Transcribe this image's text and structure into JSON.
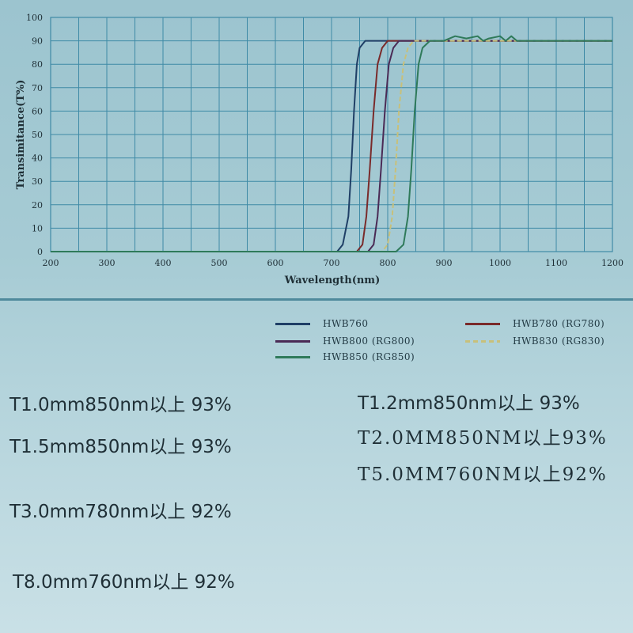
{
  "chart_data": {
    "type": "line",
    "xlabel": "Wavelength(nm)",
    "ylabel": "Transimitance(T%)",
    "xlim": [
      200,
      1200
    ],
    "ylim": [
      0,
      100
    ],
    "x_ticks": [
      200,
      300,
      400,
      500,
      600,
      700,
      800,
      900,
      1000,
      1100,
      1200
    ],
    "y_ticks": [
      0,
      10,
      20,
      30,
      40,
      50,
      60,
      70,
      80,
      90,
      100
    ],
    "grid": true,
    "series": [
      {
        "name": "HWB760",
        "color": "#1f3f66",
        "style": "solid",
        "x": [
          200,
          710,
          720,
          730,
          735,
          740,
          745,
          750,
          760,
          780,
          1200
        ],
        "y": [
          0,
          0,
          3,
          15,
          35,
          60,
          80,
          87,
          90,
          90,
          90
        ]
      },
      {
        "name": "HWB780 (RG780)",
        "color": "#7a2a2a",
        "style": "solid",
        "x": [
          200,
          745,
          755,
          762,
          768,
          775,
          782,
          790,
          800,
          820,
          1200
        ],
        "y": [
          0,
          0,
          3,
          15,
          35,
          60,
          80,
          87,
          90,
          90,
          90
        ]
      },
      {
        "name": "HWB800 (RG800)",
        "color": "#4a2a55",
        "style": "solid",
        "x": [
          200,
          765,
          775,
          782,
          788,
          795,
          802,
          810,
          820,
          840,
          1200
        ],
        "y": [
          0,
          0,
          3,
          15,
          35,
          60,
          80,
          87,
          90,
          90,
          90
        ]
      },
      {
        "name": "HWB830 (RG830)",
        "color": "#c8c07a",
        "style": "dashed",
        "x": [
          200,
          790,
          800,
          808,
          814,
          820,
          828,
          836,
          846,
          860,
          1200
        ],
        "y": [
          0,
          0,
          3,
          15,
          35,
          60,
          80,
          87,
          90,
          90,
          90
        ]
      },
      {
        "name": "HWB850 (RG850)",
        "color": "#2f7a5a",
        "style": "solid",
        "x": [
          200,
          815,
          828,
          836,
          842,
          848,
          855,
          862,
          875,
          900,
          920,
          940,
          960,
          970,
          980,
          1000,
          1010,
          1020,
          1030,
          1200
        ],
        "y": [
          0,
          0,
          3,
          15,
          35,
          60,
          80,
          87,
          90,
          90,
          92,
          91,
          92,
          90,
          91,
          92,
          90,
          92,
          90,
          90
        ]
      }
    ]
  },
  "legend": [
    {
      "key": "hwb760",
      "text": "HWB760",
      "color": "#1f3f66",
      "dashed": false
    },
    {
      "key": "hwb780",
      "text": "HWB780 (RG780)",
      "color": "#7a2a2a",
      "dashed": false
    },
    {
      "key": "hwb800",
      "text": "HWB800 (RG800)",
      "color": "#4a2a55",
      "dashed": false
    },
    {
      "key": "hwb830",
      "text": "HWB830 (RG830)",
      "color": "#c8c07a",
      "dashed": true
    },
    {
      "key": "hwb850",
      "text": "HWB850 (RG850)",
      "color": "#2f7a5a",
      "dashed": false
    }
  ],
  "specs": {
    "s1": "T1.0mm850nm以上 93%",
    "s2": "T1.5mm850nm以上 93%",
    "s3": "T3.0mm780nm以上 92%",
    "s4": "T8.0mm760nm以上 92%",
    "s5": "T1.2mm850nm以上 93%",
    "s6": "T2.0MM850NM以上93%",
    "s7": "T5.0MM760NM以上92%"
  },
  "colors": {
    "grid": "#3f8aa6",
    "axis": "#2a4a55",
    "text": "#1f2f36"
  }
}
